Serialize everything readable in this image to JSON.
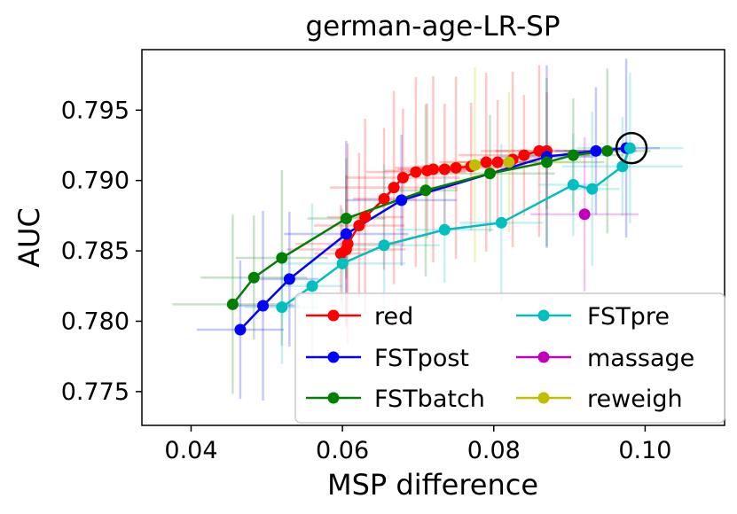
{
  "chart_data": {
    "type": "line",
    "title": "german-age-LR-SP",
    "xlabel": "MSP difference",
    "ylabel": "AUC",
    "xlim": [
      0.0335,
      0.1105
    ],
    "ylim": [
      0.7726,
      0.7993
    ],
    "xticks": [
      0.04,
      0.06,
      0.08,
      0.1
    ],
    "xtick_labels": [
      "0.04",
      "0.06",
      "0.08",
      "0.10"
    ],
    "yticks": [
      0.775,
      0.78,
      0.785,
      0.79,
      0.795
    ],
    "ytick_labels": [
      "0.775",
      "0.780",
      "0.785",
      "0.790",
      "0.795"
    ],
    "legend_position": "lower-right",
    "highlight": {
      "label": "circled point",
      "x": 0.0982,
      "y": 0.7923
    },
    "series": [
      {
        "name": "red",
        "color": "#ff0000",
        "x": [
          0.0598,
          0.0605,
          0.0607,
          0.0622,
          0.063,
          0.0655,
          0.0668,
          0.068,
          0.0697,
          0.0712,
          0.072,
          0.0735,
          0.075,
          0.077,
          0.079,
          0.0805,
          0.0825,
          0.084,
          0.086,
          0.087
        ],
        "y": [
          0.7848,
          0.7851,
          0.7855,
          0.7868,
          0.7874,
          0.7887,
          0.7895,
          0.7902,
          0.7906,
          0.7907,
          0.7908,
          0.7908,
          0.7909,
          0.791,
          0.7913,
          0.7913,
          0.7915,
          0.7918,
          0.7921,
          0.7921
        ]
      },
      {
        "name": "FSTpost",
        "color": "#0000ff",
        "x": [
          0.0465,
          0.0495,
          0.053,
          0.0605,
          0.0678,
          0.087,
          0.0935,
          0.0975
        ],
        "y": [
          0.7794,
          0.7811,
          0.783,
          0.7862,
          0.7886,
          0.7917,
          0.7921,
          0.7923
        ]
      },
      {
        "name": "FSTbatch",
        "color": "#008000",
        "x": [
          0.0455,
          0.0483,
          0.052,
          0.0605,
          0.071,
          0.0795,
          0.087,
          0.0905,
          0.095
        ],
        "y": [
          0.7812,
          0.7831,
          0.7845,
          0.7873,
          0.7893,
          0.7905,
          0.7913,
          0.7918,
          0.7921
        ]
      },
      {
        "name": "FSTpre",
        "color": "#00bfbf",
        "x": [
          0.052,
          0.056,
          0.06,
          0.0655,
          0.0735,
          0.081,
          0.0905,
          0.093,
          0.097,
          0.098
        ],
        "y": [
          0.781,
          0.7825,
          0.7841,
          0.7854,
          0.7865,
          0.787,
          0.7897,
          0.7894,
          0.791,
          0.7923
        ]
      },
      {
        "name": "massage",
        "color": "#bf00bf",
        "x": [
          0.092
        ],
        "y": [
          0.7876
        ]
      },
      {
        "name": "reweigh",
        "color": "#bfbf00",
        "x": [
          0.0775,
          0.082
        ],
        "y": [
          0.7911,
          0.7913
        ]
      }
    ]
  }
}
